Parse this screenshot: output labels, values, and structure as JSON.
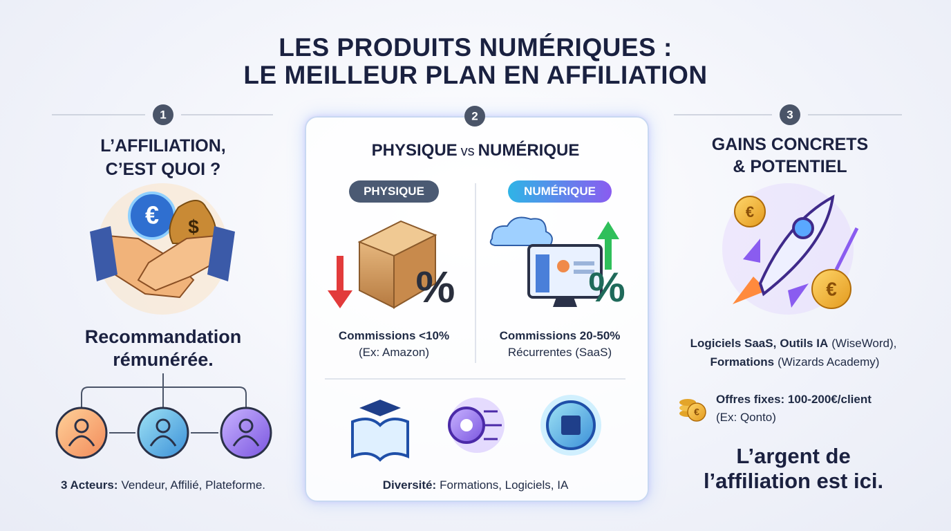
{
  "header": {
    "title_lines": [
      "LES PRODUITS NUMÉRIQUES :",
      "LE MEILLEUR PLAN EN AFFILIATION"
    ]
  },
  "icon_symbols": {
    "euro": "€",
    "dollar": "$",
    "percent": "%"
  },
  "columns": [
    {
      "number": "1",
      "heading_lines": [
        "L’AFFILIATION,",
        "C’EST QUOI ?"
      ],
      "tagline_lines": [
        "Recommandation",
        "rémunérée."
      ],
      "footer": {
        "bold": "3 Acteurs:",
        "text": "Vendeur, Affilié, Plateforme."
      }
    },
    {
      "number": "2",
      "heading": {
        "left": "PHYSIQUE",
        "middle": "vs",
        "right": "NUMÉRIQUE"
      },
      "physique": {
        "pill": "PHYSIQUE",
        "line1": "Commissions <10%",
        "line2": "(Ex: Amazon)"
      },
      "numerique": {
        "pill": "NUMÉRIQUE",
        "line1": "Commissions 20-50%",
        "line2": "Récurrentes (SaaS)"
      },
      "footer": {
        "bold": "Diversité:",
        "text": "Formations, Logiciels, IA"
      }
    },
    {
      "number": "3",
      "heading_lines": [
        "GAINS CONCRETS",
        "& POTENTIEL"
      ],
      "products": {
        "bold1": "Logiciels SaaS,",
        "bold2": "Outils IA",
        "text1": "(WiseWord),",
        "bold3": "Formations",
        "text2": "(Wizards Academy)"
      },
      "offer": {
        "line1": "Offres fixes: 100-200€/client",
        "line2": "(Ex: Qonto)"
      },
      "closing_lines": [
        "L’argent de",
        "l’affiliation est ici."
      ]
    }
  ]
}
